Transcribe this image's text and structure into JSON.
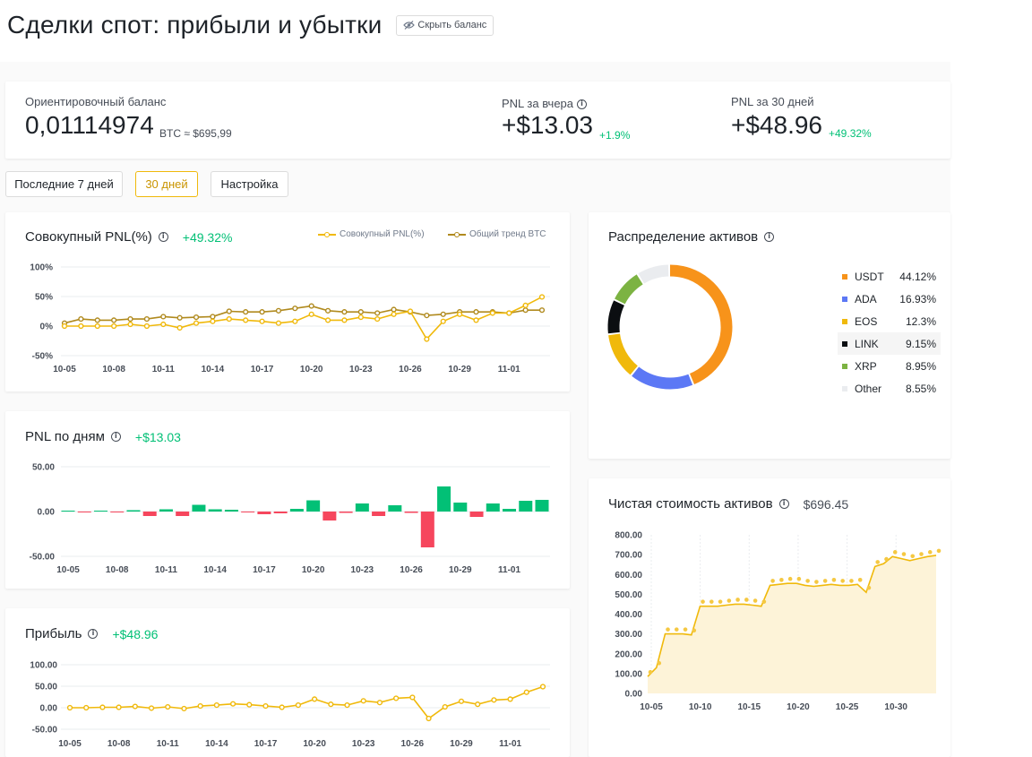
{
  "header": {
    "title": "Сделки спот: прибыли и убытки",
    "hide_balance_label": "Скрыть баланс"
  },
  "summary": {
    "balance_label": "Ориентировочный баланс",
    "balance_value": "0,01114974",
    "balance_unit": "BTC ≈ $695,99",
    "yesterday_label": "PNL за вчера",
    "yesterday_value": "+$13.03",
    "yesterday_pct": "+1.9%",
    "month_label": "PNL за 30 дней",
    "month_value": "+$48.96",
    "month_pct": "+49.32%"
  },
  "period_buttons": [
    "Последние 7 дней",
    "30 дней",
    "Настройка"
  ],
  "active_period": 1,
  "cards": {
    "cumulative": {
      "title": "Совокупный PNL(%)",
      "value": "+49.32%",
      "legend_1": "Совокупный PNL(%)",
      "legend_2": "Общий тренд BTC"
    },
    "daily": {
      "title": "PNL по дням",
      "value": "+$13.03"
    },
    "profit": {
      "title": "Прибыль",
      "value": "+$48.96"
    },
    "allocation": {
      "title": "Распределение активов"
    },
    "net_worth": {
      "title": "Чистая стоимость активов",
      "value": "$696.45"
    }
  },
  "colors": {
    "accent": "#f0b90b",
    "positive": "#02c076",
    "negative": "#f6465d",
    "btc_trend": "#b08a1e"
  },
  "chart_data": [
    {
      "type": "line",
      "title": "Совокупный PNL(%)",
      "x_ticks": [
        "10-05",
        "10-08",
        "10-11",
        "10-14",
        "10-17",
        "10-20",
        "10-23",
        "10-26",
        "10-29",
        "11-01"
      ],
      "y_ticks": [
        "100%",
        "50%",
        "0%",
        "-50%"
      ],
      "ylim": [
        -50,
        100
      ],
      "series": [
        {
          "name": "Совокупный PNL(%)",
          "color": "#f0b90b",
          "values": [
            0,
            0,
            0,
            0,
            3,
            0,
            3,
            -3,
            5,
            8,
            12,
            10,
            8,
            5,
            8,
            20,
            10,
            10,
            15,
            12,
            20,
            25,
            -22,
            8,
            20,
            10,
            22,
            22,
            35,
            49.32
          ]
        },
        {
          "name": "Общий тренд BTC",
          "color": "#b08a1e",
          "values": [
            5,
            12,
            10,
            10,
            12,
            12,
            16,
            14,
            15,
            16,
            25,
            24,
            24,
            26,
            30,
            34,
            26,
            24,
            24,
            22,
            28,
            24,
            18,
            20,
            24,
            24,
            24,
            22,
            27,
            27
          ]
        }
      ]
    },
    {
      "type": "bar",
      "title": "PNL по дням",
      "x_ticks": [
        "10-05",
        "10-08",
        "10-11",
        "10-14",
        "10-17",
        "10-20",
        "10-23",
        "10-26",
        "10-29",
        "11-01"
      ],
      "y_ticks": [
        "50.00",
        "0.00",
        "-50.00"
      ],
      "ylim": [
        -50,
        50
      ],
      "values": [
        0.5,
        -0.5,
        0.5,
        -0.5,
        1.5,
        -5,
        2.5,
        -5,
        7.5,
        2.5,
        2,
        -1,
        -3,
        -2,
        3,
        12.5,
        -10,
        -1.5,
        9,
        -5,
        7,
        -1.5,
        -40,
        28,
        10,
        -6,
        9,
        3,
        12,
        13.03
      ]
    },
    {
      "type": "line",
      "title": "Прибыль",
      "x_ticks": [
        "10-05",
        "10-08",
        "10-11",
        "10-14",
        "10-17",
        "10-20",
        "10-23",
        "10-26",
        "10-29",
        "11-01"
      ],
      "y_ticks": [
        "100.00",
        "50.00",
        "0.00",
        "-50.00"
      ],
      "ylim": [
        -50,
        100
      ],
      "values": [
        0,
        0,
        1,
        1,
        3,
        -1,
        2,
        -2,
        4,
        6,
        9,
        7,
        4,
        1,
        6,
        20,
        8,
        6,
        16,
        12,
        22,
        24,
        -25,
        2,
        15,
        8,
        18,
        20,
        36,
        48.96
      ]
    },
    {
      "type": "pie",
      "title": "Распределение активов",
      "categories": [
        "USDT",
        "ADA",
        "EOS",
        "LINK",
        "XRP",
        "Other"
      ],
      "values": [
        44.12,
        16.93,
        12.3,
        9.15,
        8.95,
        8.55
      ],
      "labels": [
        "44.12%",
        "16.93%",
        "12.3%",
        "9.15%",
        "8.95%",
        "8.55%"
      ],
      "colors": [
        "#f7931a",
        "#5c78f5",
        "#f0b90b",
        "#0b0e11",
        "#7cb342",
        "#eaecef"
      ],
      "highlighted": "LINK"
    },
    {
      "type": "area",
      "title": "Чистая стоимость активов",
      "x_ticks": [
        "10-05",
        "10-10",
        "10-15",
        "10-20",
        "10-25",
        "10-30"
      ],
      "y_ticks": [
        "800.00",
        "700.00",
        "600.00",
        "500.00",
        "400.00",
        "300.00",
        "200.00",
        "100.00",
        "0.00"
      ],
      "ylim": [
        0,
        800
      ],
      "values": [
        85,
        130,
        300,
        300,
        300,
        295,
        440,
        440,
        440,
        445,
        450,
        450,
        445,
        440,
        545,
        550,
        555,
        555,
        545,
        540,
        545,
        550,
        545,
        545,
        550,
        510,
        640,
        655,
        690,
        680,
        670,
        680,
        690,
        696.45
      ]
    }
  ]
}
